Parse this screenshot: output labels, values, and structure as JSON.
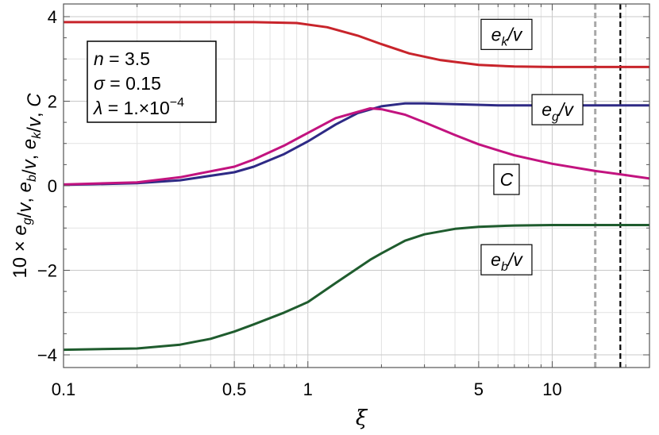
{
  "chart_data": {
    "type": "line",
    "title": "",
    "xlabel": "ξ",
    "ylabel": "10 × e_g/v, e_b/v, e_k/v, C",
    "x_scale": "log",
    "xlim": [
      0.1,
      25
    ],
    "ylim": [
      -4.3,
      4.3
    ],
    "grid": true,
    "x_ticks": [
      {
        "value": 0.1,
        "label": "0.1"
      },
      {
        "value": 0.5,
        "label": "0.5"
      },
      {
        "value": 1,
        "label": "1"
      },
      {
        "value": 5,
        "label": "5"
      },
      {
        "value": 10,
        "label": "10"
      }
    ],
    "y_ticks": [
      {
        "value": -4,
        "label": "−4"
      },
      {
        "value": -2,
        "label": "−2"
      },
      {
        "value": 0,
        "label": "0"
      },
      {
        "value": 2,
        "label": "2"
      },
      {
        "value": 4,
        "label": "4"
      }
    ],
    "parameters": [
      {
        "symbol": "n",
        "value": "3.5"
      },
      {
        "symbol": "σ",
        "value": "0.15"
      },
      {
        "symbol": "λ",
        "value": "1.×10",
        "exponent": "−4"
      }
    ],
    "vertical_lines": [
      {
        "x": 15,
        "style": "dashed",
        "color": "#a8a8a8"
      },
      {
        "x": 19,
        "style": "dashed",
        "color": "#000000"
      }
    ],
    "series": [
      {
        "name": "e_k/v",
        "color": "#c8242b",
        "x": [
          0.1,
          0.3,
          0.6,
          0.9,
          1.2,
          1.6,
          2.0,
          2.6,
          3.5,
          5.0,
          7.0,
          10,
          15,
          25
        ],
        "y": [
          3.87,
          3.87,
          3.87,
          3.85,
          3.75,
          3.55,
          3.35,
          3.13,
          2.97,
          2.86,
          2.82,
          2.81,
          2.81,
          2.81
        ]
      },
      {
        "name": "e_g/v",
        "color": "#2e2a85",
        "x": [
          0.1,
          0.2,
          0.3,
          0.5,
          0.6,
          0.8,
          1.0,
          1.3,
          1.6,
          2.0,
          2.5,
          3.0,
          4.0,
          6.0,
          10,
          25
        ],
        "y": [
          0.02,
          0.06,
          0.13,
          0.32,
          0.45,
          0.75,
          1.05,
          1.45,
          1.72,
          1.88,
          1.95,
          1.95,
          1.93,
          1.9,
          1.9,
          1.9
        ]
      },
      {
        "name": "C",
        "color": "#c2137f",
        "x": [
          0.1,
          0.2,
          0.3,
          0.5,
          0.6,
          0.8,
          1.0,
          1.3,
          1.8,
          2.0,
          2.5,
          3.0,
          4.0,
          5.0,
          7.0,
          10,
          15,
          19,
          25
        ],
        "y": [
          0.03,
          0.08,
          0.2,
          0.45,
          0.62,
          0.95,
          1.25,
          1.6,
          1.83,
          1.81,
          1.68,
          1.5,
          1.2,
          0.98,
          0.72,
          0.52,
          0.35,
          0.27,
          0.17
        ]
      },
      {
        "name": "e_b/v",
        "color": "#1f5c2e",
        "x": [
          0.1,
          0.2,
          0.3,
          0.4,
          0.5,
          0.6,
          0.8,
          1.0,
          1.3,
          1.8,
          2.0,
          2.5,
          3.0,
          4.0,
          5.0,
          7.0,
          10,
          25
        ],
        "y": [
          -3.88,
          -3.85,
          -3.76,
          -3.62,
          -3.45,
          -3.28,
          -3.0,
          -2.75,
          -2.3,
          -1.75,
          -1.6,
          -1.3,
          -1.15,
          -1.02,
          -0.97,
          -0.94,
          -0.93,
          -0.93
        ]
      }
    ],
    "series_labels": [
      {
        "series": 0,
        "base": "e",
        "sub": "k",
        "tail": "/v",
        "at_x": 6.5,
        "at_y": 3.58
      },
      {
        "series": 1,
        "base": "e",
        "sub": "g",
        "tail": "/v",
        "at_x": 10.5,
        "at_y": 1.8
      },
      {
        "series": 2,
        "base": "C",
        "sub": "",
        "tail": "",
        "at_x": 6.5,
        "at_y": 0.15
      },
      {
        "series": 3,
        "base": "e",
        "sub": "b",
        "tail": "/v",
        "at_x": 6.5,
        "at_y": -1.75
      }
    ]
  }
}
